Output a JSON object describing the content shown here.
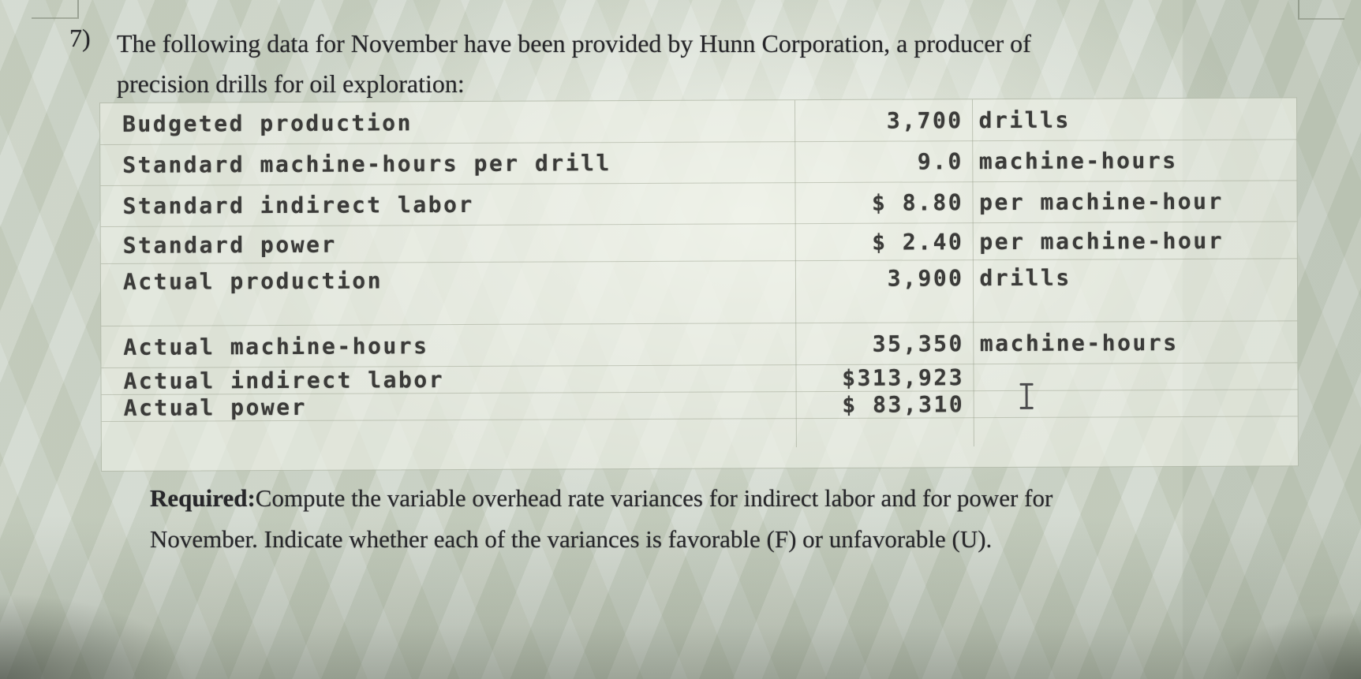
{
  "question": {
    "number": "7)",
    "heading_line1": "The following data for November have been provided by Hunn Corporation, a producer of",
    "heading_line2": "precision drills for oil exploration:"
  },
  "data_table": {
    "rows": [
      {
        "label": "Budgeted production",
        "value": "3,700",
        "unit": "drills"
      },
      {
        "label": "Standard machine-hours per drill",
        "value": "9.0",
        "unit": "machine-hours"
      },
      {
        "label": "Standard indirect labor",
        "value": "$ 8.80",
        "unit": "per machine-hour"
      },
      {
        "label": "Standard power",
        "value": "$ 2.40",
        "unit": "per machine-hour"
      },
      {
        "label": "Actual production",
        "value": "3,900",
        "unit": "drills"
      },
      {
        "label": "Actual machine-hours",
        "value": "35,350",
        "unit": "machine-hours"
      },
      {
        "label": "Actual indirect labor",
        "value": "$313,923",
        "unit": ""
      },
      {
        "label": "Actual power",
        "value": "$ 83,310",
        "unit": ""
      }
    ]
  },
  "required": {
    "label": "Required:",
    "line1": "Compute the variable overhead rate variances for indirect labor and for power for",
    "line2": "November. Indicate whether each of the variances is favorable (F) or unfavorable (U)."
  }
}
